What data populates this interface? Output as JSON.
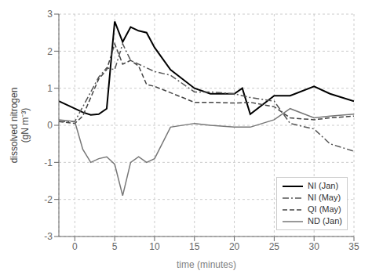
{
  "chart_data": {
    "type": "line",
    "xlabel": "time (minutes)",
    "ylabel": "dissolved nitrogen\n(gN m⁻³)",
    "xlim": [
      -2,
      35
    ],
    "ylim": [
      -3,
      3
    ],
    "xticks": [
      0,
      5,
      10,
      15,
      20,
      25,
      30,
      35
    ],
    "yticks": [
      -3,
      -2,
      -1,
      0,
      1,
      2,
      3
    ],
    "grid": true,
    "legend": "lower right",
    "series": [
      {
        "name": "NI (Jan)",
        "color": "black",
        "line_style": "solid",
        "x": [
          -2,
          -1,
          0,
          1,
          2,
          3,
          4,
          5,
          6,
          7,
          8,
          9,
          10,
          12,
          15,
          17,
          20,
          21,
          22,
          25,
          27,
          30,
          32,
          35
        ],
        "values": [
          0.65,
          0.55,
          0.45,
          0.35,
          0.28,
          0.3,
          0.45,
          2.8,
          2.25,
          2.65,
          2.55,
          2.5,
          2.1,
          1.5,
          1.0,
          0.85,
          0.85,
          1.0,
          0.3,
          0.8,
          0.8,
          1.05,
          0.85,
          0.65
        ]
      },
      {
        "name": "NI (May)",
        "color": "#555555",
        "line_style": "dashdot",
        "x": [
          -2,
          0,
          1,
          2,
          3,
          4,
          5,
          6,
          7,
          8,
          9,
          10,
          12,
          15,
          17,
          20,
          22,
          25,
          27,
          30,
          32,
          35
        ],
        "values": [
          0.1,
          0.1,
          0.5,
          0.9,
          1.3,
          1.55,
          1.5,
          2.2,
          1.75,
          1.65,
          1.55,
          1.45,
          1.35,
          0.9,
          0.9,
          0.85,
          0.75,
          0.65,
          0.05,
          -0.1,
          -0.5,
          -0.7
        ]
      },
      {
        "name": "QI (May)",
        "color": "#444444",
        "line_style": "dashed",
        "x": [
          -2,
          0,
          1,
          2,
          3,
          4,
          5,
          6,
          7,
          8,
          9,
          10,
          12,
          15,
          17,
          20,
          22,
          25,
          27,
          30,
          32,
          35
        ],
        "values": [
          0.1,
          0.05,
          0.25,
          0.75,
          1.25,
          1.5,
          2.2,
          1.65,
          1.75,
          1.6,
          1.1,
          1.05,
          0.88,
          0.62,
          0.62,
          0.6,
          0.62,
          0.5,
          0.2,
          0.15,
          0.2,
          0.25
        ]
      },
      {
        "name": "ND (Jan)",
        "color": "#777777",
        "line_style": "solid",
        "x": [
          -2,
          0,
          1,
          2,
          3,
          4,
          5,
          6,
          7,
          8,
          9,
          10,
          12,
          15,
          17,
          20,
          22,
          25,
          27,
          30,
          32,
          35
        ],
        "values": [
          0.15,
          0.1,
          -0.65,
          -1.0,
          -0.9,
          -0.85,
          -1.05,
          -1.9,
          -1.0,
          -0.85,
          -1.0,
          -0.9,
          -0.05,
          0.05,
          0.0,
          -0.05,
          -0.05,
          0.15,
          0.45,
          0.2,
          0.25,
          0.3
        ]
      }
    ]
  }
}
